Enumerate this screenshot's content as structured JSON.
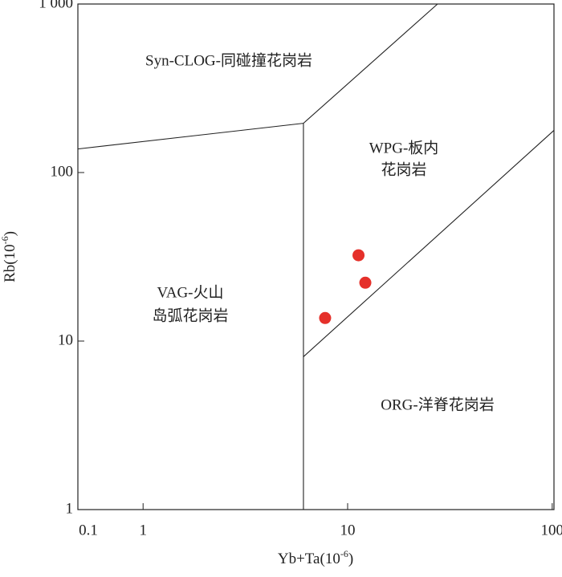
{
  "chart_data": {
    "type": "scatter",
    "x_label": "Yb+Ta(10",
    "x_label_sup": "-6",
    "x_label_end": ")",
    "y_label": "Rb(10",
    "y_label_sup": "-6",
    "y_label_end": ")",
    "xlog": true,
    "ylog": true,
    "xlim": [
      0.48,
      102
    ],
    "ylim": [
      1,
      1000
    ],
    "xticks": [
      1,
      10,
      100
    ],
    "x_axis_start_label": "0.1",
    "yticks": [
      1,
      10,
      100,
      {
        "value": 1000,
        "label": "1 000"
      }
    ],
    "series": [
      {
        "color": "#e5302a",
        "x": [
          11.3,
          12.2,
          7.76
        ],
        "values": [
          32.3,
          22.2,
          13.7
        ]
      }
    ],
    "boundaries": [
      {
        "x": [
          0.48,
          6.08
        ],
        "y": [
          138,
          196
        ]
      },
      {
        "x": [
          6.08,
          6.08
        ],
        "y": [
          196,
          1
        ]
      },
      {
        "x": [
          6.08,
          27.5
        ],
        "y": [
          196,
          1000
        ]
      },
      {
        "x": [
          6.08,
          102
        ],
        "y": [
          8.07,
          178
        ]
      }
    ],
    "region_labels": [
      "Syn-CLOG-同碰撞花岗岩",
      "WPG-板内",
      "花岗岩",
      "VAG-火山",
      "岛弧花岗岩",
      "ORG-洋脊花岗岩"
    ]
  }
}
